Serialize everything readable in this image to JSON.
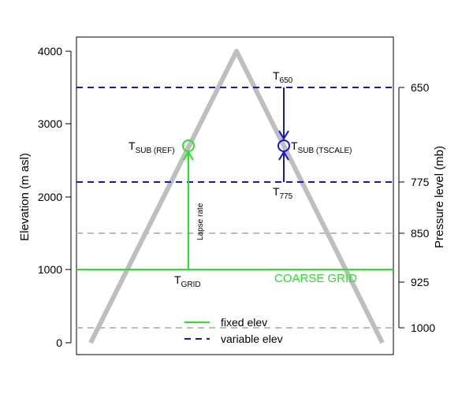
{
  "left_axis": {
    "title": "Elevation (m asl)",
    "ticks": [
      "0",
      "1000",
      "2000",
      "3000",
      "4000"
    ]
  },
  "right_axis": {
    "title": "Pressure level (mb)",
    "ticks": [
      "650",
      "775",
      "850",
      "925",
      "1000"
    ]
  },
  "labels": {
    "t_sub_ref_main": "T",
    "t_sub_ref_sub": "SUB (REF)",
    "t_sub_tscale_main": "T",
    "t_sub_tscale_sub": "SUB (TSCALE)",
    "t650_main": "T",
    "t650_sub": "650",
    "t775_main": "T",
    "t775_sub": "775",
    "tgrid_main": "T",
    "tgrid_sub": "GRID",
    "lapse_rate": "Lapse rate",
    "coarse_grid": "COARSE GRID"
  },
  "legend": {
    "fixed": "fixed elev",
    "variable": "variable elev"
  },
  "colors": {
    "green": "#22e822",
    "blue": "#1414d2",
    "grey_mountain": "#bebebe",
    "grey_dash": "#bbbbbb"
  }
}
